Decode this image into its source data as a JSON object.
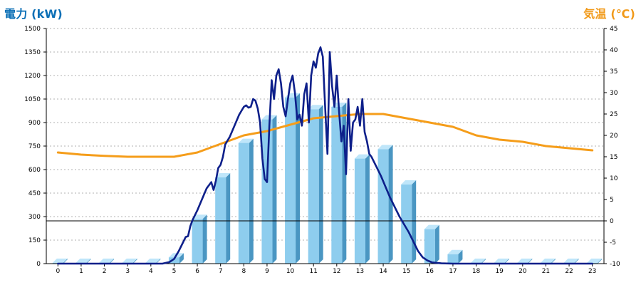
{
  "chart_data": {
    "type": "bar-line-combo",
    "title_left": "電力 (kW)",
    "title_right": "気温 (℃)",
    "colors": {
      "bar_face": "#8ecdee",
      "bar_side": "#4a96c2",
      "bar_top": "#bfe6fa",
      "power_line": "#0d1f8a",
      "temp_line": "#f59d1a",
      "grid": "#b0b0b0",
      "title_left": "#0b6fb6",
      "title_right": "#f19a1a"
    },
    "x_ticks": [
      "0",
      "1",
      "2",
      "3",
      "4",
      "5",
      "6",
      "7",
      "8",
      "9",
      "10",
      "11",
      "12",
      "13",
      "14",
      "15",
      "16",
      "17",
      "18",
      "19",
      "20",
      "21",
      "22",
      "23"
    ],
    "y_left_ticks": [
      "0",
      "150",
      "300",
      "450",
      "600",
      "750",
      "900",
      "1050",
      "1200",
      "1350",
      "1500"
    ],
    "y_right_ticks": [
      "-10",
      "-5",
      "0",
      "5",
      "10",
      "15",
      "20",
      "25",
      "30",
      "35",
      "40",
      "45"
    ],
    "y_left_range": [
      0,
      1500
    ],
    "y_right_range": [
      -10,
      45
    ],
    "bars_kw": [
      0,
      0,
      0,
      0,
      0,
      40,
      285,
      550,
      770,
      920,
      1060,
      985,
      1000,
      670,
      730,
      505,
      220,
      60,
      0,
      0,
      0,
      0,
      0,
      0
    ],
    "power_line_kw": [
      [
        0,
        0
      ],
      [
        1,
        0
      ],
      [
        2,
        0
      ],
      [
        3,
        0
      ],
      [
        4,
        0
      ],
      [
        4.5,
        0
      ],
      [
        4.8,
        10
      ],
      [
        5.0,
        30
      ],
      [
        5.2,
        80
      ],
      [
        5.4,
        140
      ],
      [
        5.5,
        170
      ],
      [
        5.6,
        175
      ],
      [
        5.7,
        240
      ],
      [
        5.8,
        280
      ],
      [
        6.0,
        340
      ],
      [
        6.2,
        410
      ],
      [
        6.4,
        480
      ],
      [
        6.6,
        520
      ],
      [
        6.7,
        470
      ],
      [
        6.8,
        530
      ],
      [
        6.9,
        610
      ],
      [
        7.0,
        630
      ],
      [
        7.1,
        680
      ],
      [
        7.2,
        760
      ],
      [
        7.4,
        810
      ],
      [
        7.6,
        880
      ],
      [
        7.8,
        950
      ],
      [
        8.0,
        1000
      ],
      [
        8.1,
        1010
      ],
      [
        8.2,
        995
      ],
      [
        8.3,
        1000
      ],
      [
        8.4,
        1050
      ],
      [
        8.5,
        1040
      ],
      [
        8.6,
        990
      ],
      [
        8.7,
        900
      ],
      [
        8.8,
        670
      ],
      [
        8.9,
        540
      ],
      [
        9.0,
        520
      ],
      [
        9.1,
        880
      ],
      [
        9.2,
        1170
      ],
      [
        9.3,
        1050
      ],
      [
        9.4,
        1200
      ],
      [
        9.5,
        1240
      ],
      [
        9.6,
        1150
      ],
      [
        9.7,
        1000
      ],
      [
        9.8,
        940
      ],
      [
        9.9,
        1050
      ],
      [
        10.0,
        1150
      ],
      [
        10.1,
        1200
      ],
      [
        10.2,
        1090
      ],
      [
        10.3,
        920
      ],
      [
        10.4,
        950
      ],
      [
        10.5,
        880
      ],
      [
        10.6,
        1080
      ],
      [
        10.7,
        1150
      ],
      [
        10.8,
        900
      ],
      [
        10.9,
        1200
      ],
      [
        11.0,
        1290
      ],
      [
        11.1,
        1250
      ],
      [
        11.2,
        1340
      ],
      [
        11.3,
        1380
      ],
      [
        11.4,
        1320
      ],
      [
        11.5,
        1000
      ],
      [
        11.6,
        700
      ],
      [
        11.7,
        1350
      ],
      [
        11.8,
        1130
      ],
      [
        11.9,
        1000
      ],
      [
        12.0,
        1200
      ],
      [
        12.1,
        970
      ],
      [
        12.2,
        780
      ],
      [
        12.3,
        880
      ],
      [
        12.4,
        570
      ],
      [
        12.5,
        1050
      ],
      [
        12.6,
        720
      ],
      [
        12.7,
        900
      ],
      [
        12.8,
        920
      ],
      [
        12.9,
        1000
      ],
      [
        13.0,
        880
      ],
      [
        13.1,
        1050
      ],
      [
        13.2,
        840
      ],
      [
        13.3,
        780
      ],
      [
        13.4,
        700
      ],
      [
        13.5,
        680
      ],
      [
        13.7,
        620
      ],
      [
        13.9,
        560
      ],
      [
        14.1,
        490
      ],
      [
        14.3,
        420
      ],
      [
        14.5,
        360
      ],
      [
        14.7,
        300
      ],
      [
        14.9,
        250
      ],
      [
        15.1,
        200
      ],
      [
        15.3,
        140
      ],
      [
        15.5,
        80
      ],
      [
        15.7,
        40
      ],
      [
        15.9,
        20
      ],
      [
        16.1,
        8
      ],
      [
        16.5,
        2
      ],
      [
        17,
        0
      ],
      [
        18,
        0
      ],
      [
        19,
        0
      ],
      [
        20,
        0
      ],
      [
        21,
        0
      ],
      [
        22,
        0
      ],
      [
        23,
        0
      ]
    ],
    "temp_line_c": [
      [
        0,
        16
      ],
      [
        1,
        15.5
      ],
      [
        2,
        15.2
      ],
      [
        3,
        15
      ],
      [
        4,
        15
      ],
      [
        5,
        15
      ],
      [
        6,
        16
      ],
      [
        7,
        18
      ],
      [
        8,
        20
      ],
      [
        9,
        21
      ],
      [
        10,
        22.5
      ],
      [
        11,
        24
      ],
      [
        12,
        24.5
      ],
      [
        13,
        25
      ],
      [
        14,
        25
      ],
      [
        15,
        24
      ],
      [
        16,
        23
      ],
      [
        17,
        22
      ],
      [
        18,
        20
      ],
      [
        19,
        19
      ],
      [
        20,
        18.5
      ],
      [
        21,
        17.5
      ],
      [
        22,
        17
      ],
      [
        23,
        16.5
      ]
    ]
  }
}
